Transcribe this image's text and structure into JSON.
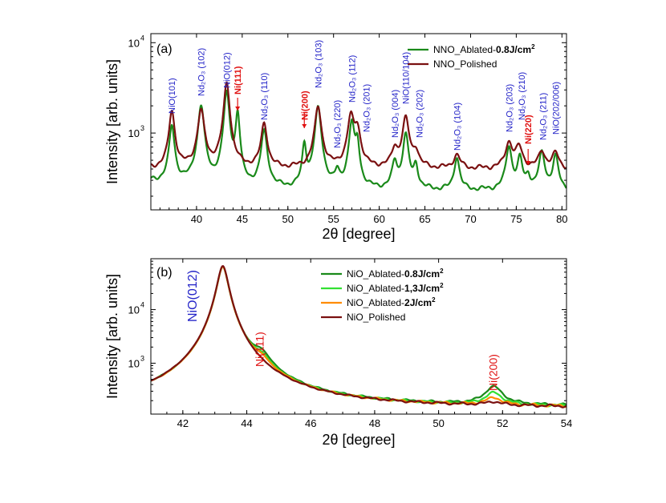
{
  "chart_data": [
    {
      "type": "line",
      "panel_label": "(a)",
      "xlabel": "2θ [degree]",
      "ylabel": "Intensity [arb. units]",
      "xlim": [
        35,
        80.5
      ],
      "ylim_log10": [
        2.15,
        4.1
      ],
      "y_scale": "log",
      "x_ticks": [
        40,
        45,
        50,
        55,
        60,
        65,
        70,
        75,
        80
      ],
      "y_ticks": [
        {
          "value": 1000,
          "label": "10",
          "exp": "3"
        },
        {
          "value": 10000,
          "label": "10",
          "exp": "4"
        }
      ],
      "legend_position": "top-right",
      "series": [
        {
          "name": "NNO_Ablated-",
          "name_bold": "0.8J/cm",
          "name_sup": "2",
          "color": "#1a8a1a",
          "baseline": 230,
          "peaks": [
            [
              37.3,
              930,
              0.28
            ],
            [
              40.5,
              1760,
              0.33
            ],
            [
              43.3,
              2650,
              0.28
            ],
            [
              44.5,
              1410,
              0.22
            ],
            [
              47.4,
              830,
              0.32
            ],
            [
              51.8,
              500,
              0.22
            ],
            [
              53.3,
              1720,
              0.32
            ],
            [
              55.4,
              110,
              0.25
            ],
            [
              57.0,
              1100,
              0.3
            ],
            [
              57.6,
              520,
              0.22
            ],
            [
              61.7,
              240,
              0.3
            ],
            [
              62.9,
              750,
              0.3
            ],
            [
              64.0,
              200,
              0.25
            ],
            [
              68.5,
              300,
              0.3
            ],
            [
              74.2,
              470,
              0.32
            ],
            [
              75.4,
              300,
              0.28
            ],
            [
              76.3,
              95,
              0.25
            ],
            [
              77.8,
              380,
              0.32
            ],
            [
              79.3,
              330,
              0.3
            ]
          ]
        },
        {
          "name": "NNO_Polished",
          "name_bold": "",
          "name_sup": "",
          "color": "#7a1010",
          "baseline": 400,
          "peaks": [
            [
              37.3,
              1350,
              0.3
            ],
            [
              40.5,
              1400,
              0.35
            ],
            [
              43.3,
              3200,
              0.3
            ],
            [
              47.4,
              880,
              0.32
            ],
            [
              53.3,
              1550,
              0.35
            ],
            [
              56.9,
              1150,
              0.35
            ],
            [
              57.6,
              680,
              0.35
            ],
            [
              61.7,
              250,
              0.35
            ],
            [
              62.9,
              1100,
              0.35
            ],
            [
              64.0,
              210,
              0.35
            ],
            [
              68.5,
              170,
              0.4
            ],
            [
              74.2,
              380,
              0.4
            ],
            [
              75.3,
              300,
              0.4
            ],
            [
              77.8,
              220,
              0.4
            ],
            [
              79.3,
              200,
              0.4
            ]
          ]
        }
      ],
      "annotations": [
        {
          "text": "NiO(101)",
          "x": 37.3,
          "color": "blue"
        },
        {
          "text": "Nd₂O₃ (102)",
          "x": 40.5,
          "color": "blue"
        },
        {
          "text": "NiO(012)",
          "x": 43.3,
          "color": "blue"
        },
        {
          "text": "Ni(111)",
          "x": 44.5,
          "color": "red"
        },
        {
          "text": "Nd₂O₃ (110)",
          "x": 47.4,
          "color": "blue"
        },
        {
          "text": "Ni(200)",
          "x": 51.8,
          "color": "red"
        },
        {
          "text": "Nd₂O₃ (103)",
          "x": 53.3,
          "color": "blue"
        },
        {
          "text": "Nd₂O₃ (220)",
          "x": 55.4,
          "color": "blue"
        },
        {
          "text": "Nd₂O₃ (112)",
          "x": 57.0,
          "color": "blue"
        },
        {
          "text": "Nd₂O₃ (201)",
          "x": 58.6,
          "color": "blue"
        },
        {
          "text": "Nd₂O₃ (004)",
          "x": 61.7,
          "color": "blue"
        },
        {
          "text": "NiO(110/104)",
          "x": 62.9,
          "color": "blue"
        },
        {
          "text": "Nd₂O₃ (202)",
          "x": 64.4,
          "color": "blue"
        },
        {
          "text": "Nd₂O₃ (104)",
          "x": 68.5,
          "color": "blue"
        },
        {
          "text": "Nd₂O₃ (203)",
          "x": 74.2,
          "color": "blue"
        },
        {
          "text": "Nd₂O₃ (210)",
          "x": 75.6,
          "color": "blue"
        },
        {
          "text": "Ni(220)",
          "x": 76.3,
          "color": "red"
        },
        {
          "text": "Nd₂O₃ (211)",
          "x": 77.9,
          "color": "blue"
        },
        {
          "text": "NiO(202/006)",
          "x": 79.3,
          "color": "blue"
        }
      ]
    },
    {
      "type": "line",
      "panel_label": "(b)",
      "xlabel": "2θ [degree]",
      "ylabel": "Intensity [arb. units]",
      "xlim": [
        41,
        54
      ],
      "ylim_log10": [
        2.05,
        4.95
      ],
      "y_scale": "log",
      "x_ticks": [
        42,
        44,
        46,
        48,
        50,
        52,
        54
      ],
      "y_ticks": [
        {
          "value": 1000,
          "label": "10",
          "exp": "3"
        },
        {
          "value": 10000,
          "label": "10",
          "exp": "4"
        }
      ],
      "legend_position": "top-right",
      "series": [
        {
          "name": "NiO_Ablated-",
          "name_bold": "0.8J/cm",
          "name_sup": "2",
          "color": "#1a8a1a",
          "baseline": 150,
          "nio_amp": 63000,
          "ni111": 680,
          "ni200": 200
        },
        {
          "name": "NiO_Ablated-",
          "name_bold": "1,3J/cm",
          "name_sup": "2",
          "color": "#33e033",
          "baseline": 148,
          "nio_amp": 63000,
          "ni111": 440,
          "ni200": 115
        },
        {
          "name": "NiO_Ablated-",
          "name_bold": "2J/cm",
          "name_sup": "2",
          "color": "#ff8c00",
          "baseline": 146,
          "nio_amp": 63000,
          "ni111": 320,
          "ni200": 60
        },
        {
          "name": "NiO_Polished",
          "name_bold": "",
          "name_sup": "",
          "color": "#7a1010",
          "baseline": 144,
          "nio_amp": 65000,
          "ni111": 0,
          "ni200": 25
        }
      ],
      "annotations": [
        {
          "text": "NiO(012)",
          "x": 42.3,
          "color": "blue"
        },
        {
          "text": "Ni(111)",
          "x": 44.4,
          "color": "red"
        },
        {
          "text": "Ni(200)",
          "x": 51.7,
          "color": "red"
        }
      ]
    }
  ]
}
